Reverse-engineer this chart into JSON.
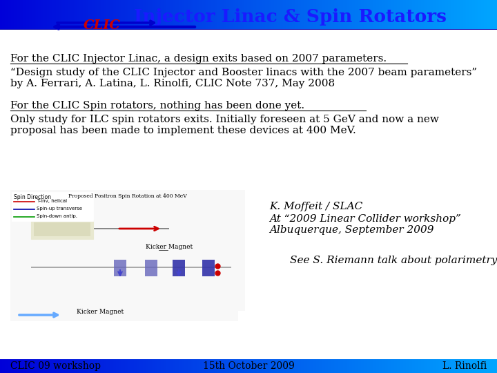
{
  "title": "Injector Linac & Spin Rotators",
  "title_color": "#1a1aff",
  "title_fontsize": 19,
  "bg_color": "#ffffff",
  "line1_underlined": "For the CLIC Injector Linac, a design exits based on 2007 parameters.",
  "line2a": "“Design study of the CLIC Injector and Booster linacs with the 2007 beam parameters”",
  "line2b": "by A. Ferrari, A. Latina, L. Rinolfi, CLIC Note 737, May 2008",
  "line3_underlined": "For the CLIC Spin rotators, nothing has been done yet.",
  "line4a": "Only study for ILC spin rotators exits. Initially foreseen at 5 GeV and now a new",
  "line4b": "proposal has been made to implement these devices at 400 MeV.",
  "italic1": "K. Moffeit / SLAC",
  "italic2": "At “2009 Linear Collider workshop”",
  "italic3": "Albuquerque, September 2009",
  "italic4": "See S. Riemann talk about polarimetry",
  "footer_left": "CLIC 09 workshop",
  "footer_center": "15th October 2009",
  "footer_right": "L. Rinolfi",
  "text_color": "#000000",
  "footer_text_color": "#000000",
  "main_font_size": 11,
  "italic_font_size": 11,
  "footer_font_size": 10,
  "clic_text": "CLIC",
  "clic_color": "#cc0000"
}
